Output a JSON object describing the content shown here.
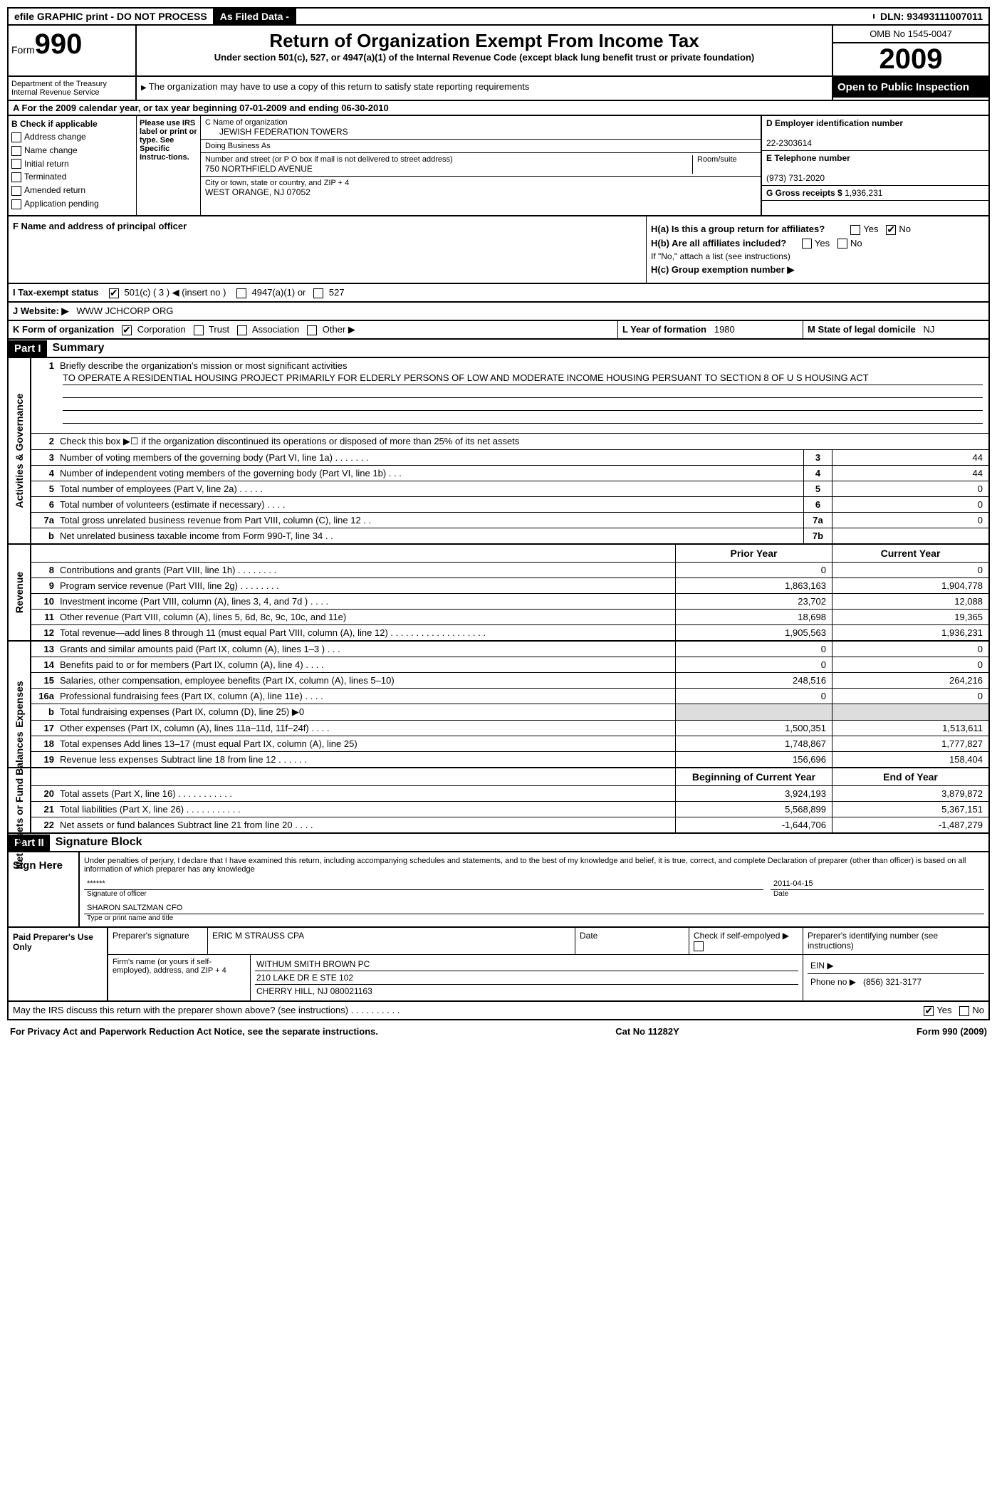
{
  "topbar": {
    "efile": "efile GRAPHIC print - DO NOT PROCESS",
    "asfiled": "As Filed Data -",
    "dln_label": "DLN:",
    "dln": "93493111007011"
  },
  "header": {
    "form_label": "Form",
    "form_num": "990",
    "dept": "Department of the Treasury",
    "irs": "Internal Revenue Service",
    "title": "Return of Organization Exempt From Income Tax",
    "subtitle": "Under section 501(c), 527, or 4947(a)(1) of the Internal Revenue Code (except black lung benefit trust or private foundation)",
    "copy_note": "The organization may have to use a copy of this return to satisfy state reporting requirements",
    "omb": "OMB No 1545-0047",
    "year": "2009",
    "open": "Open to Public Inspection"
  },
  "section_a": "A  For the 2009 calendar year, or tax year beginning 07-01-2009    and ending 06-30-2010",
  "col_b": {
    "label": "B Check if applicable",
    "items": [
      "Address change",
      "Name change",
      "Initial return",
      "Terminated",
      "Amended return",
      "Application pending"
    ]
  },
  "col_irs": "Please use IRS label or print or type. See Specific Instruc-tions.",
  "col_c": {
    "name_label": "C Name of organization",
    "name": "JEWISH FEDERATION TOWERS",
    "dba_label": "Doing Business As",
    "dba": "",
    "street_label": "Number and street (or P O  box if mail is not delivered to street address)",
    "room_label": "Room/suite",
    "street": "750 NORTHFIELD AVENUE",
    "city_label": "City or town, state or country, and ZIP + 4",
    "city": "WEST ORANGE, NJ  07052"
  },
  "col_d": {
    "ein_label": "D Employer identification number",
    "ein": "22-2303614",
    "phone_label": "E Telephone number",
    "phone": "(973) 731-2020",
    "gross_label": "G Gross receipts $",
    "gross": "1,936,231"
  },
  "col_f": "F  Name and address of principal officer",
  "col_h": {
    "ha": "H(a)  Is this a group return for affiliates?",
    "hb": "H(b)  Are all affiliates included?",
    "hb_note": "If \"No,\" attach a list  (see instructions)",
    "hc": "H(c)   Group exemption number ▶"
  },
  "line_i": {
    "label": "I   Tax-exempt status",
    "opt1": "501(c) ( 3 ) ◀ (insert no )",
    "opt2": "4947(a)(1) or",
    "opt3": "527"
  },
  "line_j": {
    "label": "J  Website: ▶",
    "val": "WWW JCHCORP ORG"
  },
  "line_k": {
    "label": "K Form of organization",
    "corp": "Corporation",
    "trust": "Trust",
    "assoc": "Association",
    "other": "Other ▶"
  },
  "line_l": {
    "label": "L Year of formation",
    "val": "1980"
  },
  "line_m": {
    "label": "M State of legal domicile",
    "val": "NJ"
  },
  "part1": {
    "hdr": "Part I",
    "title": "Summary"
  },
  "gov": {
    "vlabel": "Activities & Governance",
    "l1": "Briefly describe the organization's mission or most significant activities",
    "mission": "TO OPERATE A RESIDENTIAL HOUSING PROJECT PRIMARILY FOR ELDERLY PERSONS OF LOW AND MODERATE INCOME HOUSING PERSUANT TO SECTION 8 OF U S  HOUSING ACT",
    "l2": "Check this box ▶☐ if the organization discontinued its operations or disposed of more than 25% of its net assets",
    "l3": "Number of voting members of the governing body (Part VI, line 1a)  .   .   .   .   .   .   .",
    "l4": "Number of independent voting members of the governing body (Part VI, line 1b)   .   .   .",
    "l5": "Total number of employees (Part V, line 2a)   .   .   .   .   .",
    "l6": "Total number of volunteers (estimate if necessary)   .   .   .   .",
    "l7a": "Total gross unrelated business revenue from Part VIII, column (C), line 12   .   .",
    "l7b": "Net unrelated business taxable income from Form 990-T, line 34   .   .",
    "v3": "44",
    "v4": "44",
    "v5": "0",
    "v6": "0",
    "v7a": "0",
    "v7b": ""
  },
  "rev": {
    "vlabel": "Revenue",
    "hdr_prior": "Prior Year",
    "hdr_curr": "Current Year",
    "rows": [
      {
        "n": "8",
        "t": "Contributions and grants (Part VIII, line 1h)   .   .   .   .   .   .   .   .",
        "p": "0",
        "c": "0"
      },
      {
        "n": "9",
        "t": "Program service revenue (Part VIII, line 2g)   .   .   .   .   .   .   .   .",
        "p": "1,863,163",
        "c": "1,904,778"
      },
      {
        "n": "10",
        "t": "Investment income (Part VIII, column (A), lines 3, 4, and 7d )   .   .   .   .",
        "p": "23,702",
        "c": "12,088"
      },
      {
        "n": "11",
        "t": "Other revenue (Part VIII, column (A), lines 5, 6d, 8c, 9c, 10c, and 11e)",
        "p": "18,698",
        "c": "19,365"
      },
      {
        "n": "12",
        "t": "Total revenue—add lines 8 through 11 (must equal Part VIII, column (A), line 12)   .   .   .   .   .   .   .   .   .   .   .   .   .   .   .   .   .   .   .",
        "p": "1,905,563",
        "c": "1,936,231"
      }
    ]
  },
  "exp": {
    "vlabel": "Expenses",
    "rows": [
      {
        "n": "13",
        "t": "Grants and similar amounts paid (Part IX, column (A), lines 1–3 )   .   .   .",
        "p": "0",
        "c": "0"
      },
      {
        "n": "14",
        "t": "Benefits paid to or for members (Part IX, column (A), line 4)   .   .   .   .",
        "p": "0",
        "c": "0"
      },
      {
        "n": "15",
        "t": "Salaries, other compensation, employee benefits (Part IX, column (A), lines 5–10)",
        "p": "248,516",
        "c": "264,216"
      },
      {
        "n": "16a",
        "t": "Professional fundraising fees (Part IX, column (A), line 11e)   .   .   .   .",
        "p": "0",
        "c": "0"
      },
      {
        "n": "b",
        "t": "Total fundraising expenses (Part IX, column (D), line 25) ▶0",
        "p": "",
        "c": "",
        "grey": true
      },
      {
        "n": "17",
        "t": "Other expenses (Part IX, column (A), lines 11a–11d, 11f–24f)   .   .   .   .",
        "p": "1,500,351",
        "c": "1,513,611"
      },
      {
        "n": "18",
        "t": "Total expenses  Add lines 13–17 (must equal Part IX, column (A), line 25)",
        "p": "1,748,867",
        "c": "1,777,827"
      },
      {
        "n": "19",
        "t": "Revenue less expenses  Subtract line 18 from line 12   .   .   .   .   .   .",
        "p": "156,696",
        "c": "158,404"
      }
    ]
  },
  "net": {
    "vlabel": "Net Assets or Fund Balances",
    "hdr_beg": "Beginning of Current Year",
    "hdr_end": "End of Year",
    "rows": [
      {
        "n": "20",
        "t": "Total assets (Part X, line 16)   .   .   .   .   .   .   .   .   .   .   .",
        "p": "3,924,193",
        "c": "3,879,872"
      },
      {
        "n": "21",
        "t": "Total liabilities (Part X, line 26)   .   .   .   .   .   .   .   .   .   .   .",
        "p": "5,568,899",
        "c": "5,367,151"
      },
      {
        "n": "22",
        "t": "Net assets or fund balances  Subtract line 21 from line 20   .   .   .   .",
        "p": "-1,644,706",
        "c": "-1,487,279"
      }
    ]
  },
  "part2": {
    "hdr": "Part II",
    "title": "Signature Block"
  },
  "sig": {
    "penalty": "Under penalties of perjury, I declare that I have examined this return, including accompanying schedules and statements, and to the best of my knowledge and belief, it is true, correct, and complete  Declaration of preparer (other than officer) is based on all information of which preparer has any knowledge",
    "sign_here": "Sign Here",
    "stars": "******",
    "date": "2011-04-15",
    "sig_officer": "Signature of officer",
    "date_lbl": "Date",
    "name": "SHARON SALTZMAN  CFO",
    "name_lbl": "Type or print name and title"
  },
  "prep": {
    "label": "Paid Preparer's Use Only",
    "sig_lbl": "Preparer's signature",
    "sig": "ERIC M STRAUSS CPA",
    "date_lbl": "Date",
    "self_lbl": "Check if self-empolyed ▶",
    "id_lbl": "Preparer's identifying number (see instructions)",
    "firm_lbl": "Firm's name (or yours if self-employed), address, and ZIP + 4",
    "firm": "WITHUM SMITH BROWN PC",
    "addr1": "210 LAKE DR E STE 102",
    "addr2": "CHERRY HILL, NJ  080021163",
    "ein_lbl": "EIN ▶",
    "phone_lbl": "Phone no  ▶",
    "phone": "(856) 321-3177"
  },
  "discuss": "May the IRS discuss this return with the preparer shown above? (see instructions)   .   .   .   .   .   .   .   .   .   .",
  "footer": {
    "left": "For Privacy Act and Paperwork Reduction Act Notice, see the separate instructions.",
    "mid": "Cat No 11282Y",
    "right": "Form 990 (2009)"
  }
}
